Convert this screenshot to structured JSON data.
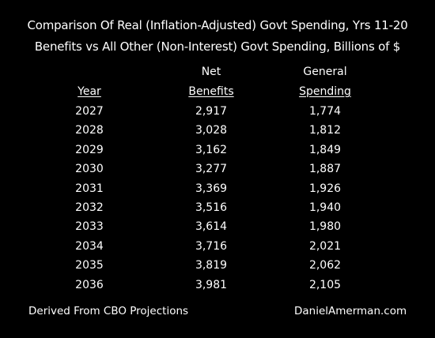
{
  "chart_data": {
    "type": "table",
    "title": "Comparison Of Real (Inflation-Adjusted)  Govt Spending, Yrs 11-20",
    "subtitle": "Benefits vs All Other (Non-Interest) Govt Spending, Billions of $",
    "columns": [
      {
        "top": "",
        "bottom": "Year"
      },
      {
        "top": "Net",
        "bottom": "Benefits"
      },
      {
        "top": "General",
        "bottom": "Spending"
      }
    ],
    "rows": [
      [
        "2027",
        "2,917",
        "1,774"
      ],
      [
        "2028",
        "3,028",
        "1,812"
      ],
      [
        "2029",
        "3,162",
        "1,849"
      ],
      [
        "2030",
        "3,277",
        "1,887"
      ],
      [
        "2031",
        "3,369",
        "1,926"
      ],
      [
        "2032",
        "3,516",
        "1,940"
      ],
      [
        "2033",
        "3,614",
        "1,980"
      ],
      [
        "2034",
        "3,716",
        "2,021"
      ],
      [
        "2035",
        "3,819",
        "2,062"
      ],
      [
        "2036",
        "3,981",
        "2,105"
      ]
    ],
    "series": [
      {
        "name": "Net Benefits",
        "values": [
          2917,
          3028,
          3162,
          3277,
          3369,
          3516,
          3614,
          3716,
          3819,
          3981
        ]
      },
      {
        "name": "General Spending",
        "values": [
          1774,
          1812,
          1849,
          1887,
          1926,
          1940,
          1980,
          2021,
          2062,
          2105
        ]
      }
    ],
    "categories": [
      "2027",
      "2028",
      "2029",
      "2030",
      "2031",
      "2032",
      "2033",
      "2034",
      "2035",
      "2036"
    ]
  },
  "footer": {
    "left": "Derived From CBO Projections",
    "right": "DanielAmerman.com"
  },
  "colors": {
    "background": "#000000",
    "text": "#ffffff"
  }
}
